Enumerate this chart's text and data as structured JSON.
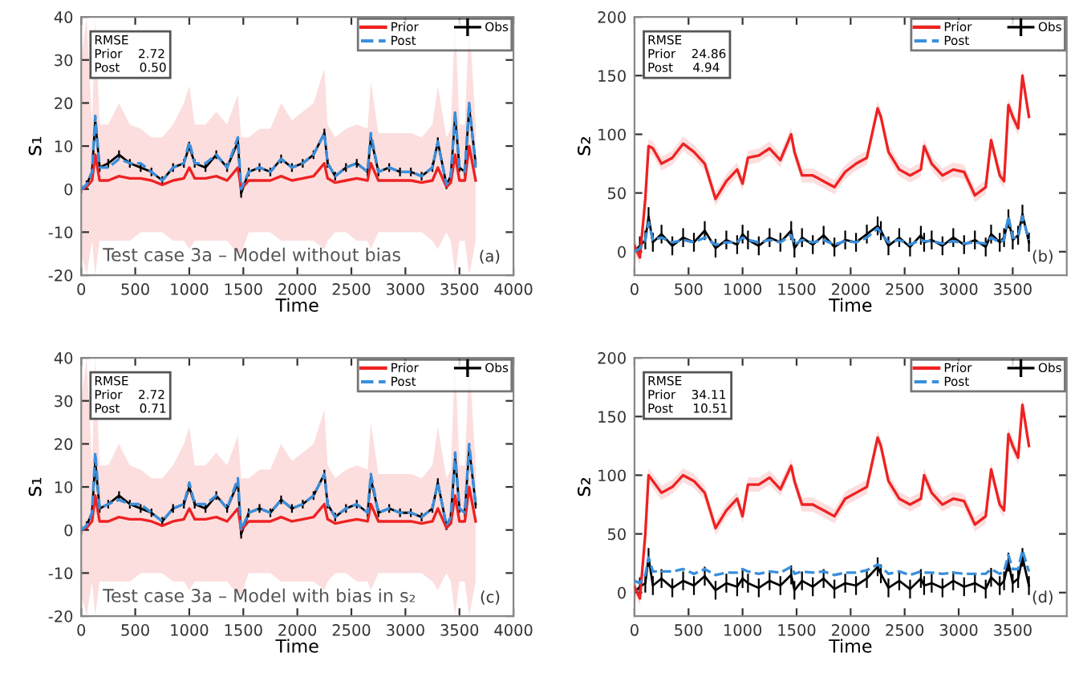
{
  "chart_data": [
    {
      "type": "line",
      "xlabel": "Time",
      "ylabel": "s₁",
      "xlim": [
        0,
        4000
      ],
      "ylim": [
        -20,
        40
      ],
      "xticks": [
        0,
        500,
        1000,
        1500,
        2000,
        2500,
        3000,
        3500,
        4000
      ],
      "yticks": [
        -20,
        -10,
        0,
        10,
        20,
        30,
        40
      ],
      "legend": "top right",
      "grid": false,
      "annotations": [
        "RMSE\nPrior    2.72\nPost     0.50",
        "Test case 3a – Model without bias",
        "(a)"
      ],
      "x": [
        0,
        50,
        100,
        130,
        170,
        250,
        350,
        450,
        550,
        650,
        750,
        850,
        950,
        1000,
        1050,
        1150,
        1250,
        1350,
        1450,
        1480,
        1550,
        1650,
        1750,
        1850,
        1950,
        2050,
        2150,
        2250,
        2280,
        2350,
        2450,
        2550,
        2650,
        2680,
        2750,
        2850,
        2950,
        3050,
        3150,
        3250,
        3300,
        3380,
        3420,
        3460,
        3500,
        3550,
        3590,
        3650
      ],
      "series": [
        {
          "name": "Prior",
          "color": "#ee2222",
          "line_style": "solid",
          "values": [
            0,
            0.5,
            2,
            8,
            2,
            2,
            3,
            2.5,
            2.5,
            2,
            1,
            2,
            2.5,
            5,
            2.5,
            2.5,
            3,
            2,
            5,
            0,
            2,
            2,
            2,
            3,
            2,
            2.5,
            3,
            6,
            2.5,
            1.5,
            2,
            2.5,
            2,
            6,
            2,
            2,
            2,
            2,
            1.5,
            2,
            5,
            0.5,
            1.5,
            8,
            2,
            2,
            10,
            2
          ],
          "lower": [
            -15,
            -20,
            -12,
            -20,
            -12,
            -12,
            -12,
            -12,
            -10,
            -10,
            -10,
            -12,
            -12,
            -14,
            -12,
            -12,
            -12,
            -12,
            -15,
            -15,
            -10,
            -10,
            -10,
            -12,
            -12,
            -12,
            -12,
            -14,
            -12,
            -10,
            -10,
            -12,
            -12,
            -14,
            -10,
            -10,
            -10,
            -10,
            -10,
            -12,
            -14,
            -10,
            -12,
            -20,
            -12,
            -12,
            -20,
            -12
          ],
          "upper": [
            30,
            40,
            15,
            40,
            15,
            15,
            20,
            15,
            14,
            12,
            12,
            15,
            20,
            24,
            15,
            15,
            18,
            15,
            22,
            12,
            12,
            14,
            14,
            20,
            16,
            18,
            20,
            28,
            15,
            12,
            14,
            15,
            14,
            25,
            13,
            13,
            13,
            13,
            12,
            15,
            24,
            12,
            14,
            40,
            15,
            15,
            40,
            15
          ]
        },
        {
          "name": "Post",
          "color": "#3a8fdc",
          "line_style": "dashed",
          "values": [
            0,
            1,
            4,
            17,
            5,
            5,
            7,
            6,
            6,
            4,
            2,
            5,
            6,
            11,
            6,
            6,
            8,
            5,
            12,
            0,
            4,
            5,
            4,
            7,
            5,
            6,
            8,
            13,
            6,
            3,
            5,
            6,
            4,
            13,
            4,
            5,
            4,
            4,
            3,
            5,
            11,
            1,
            3,
            18,
            5,
            4,
            20,
            5
          ]
        },
        {
          "name": "Obs",
          "color": "#000000",
          "line_style": "solid",
          "values": [
            0,
            1,
            4,
            16,
            5,
            6,
            8,
            6,
            5,
            4,
            2,
            5,
            6,
            10,
            6,
            5,
            8,
            5,
            11,
            -1,
            4,
            5,
            4,
            7,
            5,
            6,
            8,
            13,
            6,
            3,
            5,
            6,
            4,
            12,
            4,
            5,
            4,
            4,
            3,
            5,
            11,
            1,
            3,
            17,
            5,
            4,
            19,
            6
          ],
          "errors": [
            1,
            1,
            1,
            1,
            1,
            1,
            1,
            1,
            1,
            1,
            1,
            1,
            1,
            1,
            1,
            1,
            1,
            1,
            1,
            1,
            1,
            1,
            1,
            1,
            1,
            1,
            1,
            1,
            1,
            1,
            1,
            1,
            1,
            1,
            1,
            1,
            1,
            1,
            1,
            1,
            1,
            1,
            1,
            1,
            1,
            1,
            1,
            1
          ]
        }
      ]
    },
    {
      "type": "line",
      "xlabel": "Time",
      "ylabel": "s₂",
      "xlim": [
        0,
        4000
      ],
      "ylim": [
        -20,
        200
      ],
      "xticks": [
        0,
        500,
        1000,
        1500,
        2000,
        2500,
        3000,
        3500
      ],
      "yticks": [
        0,
        50,
        100,
        150,
        200
      ],
      "legend": "top right",
      "grid": false,
      "annotations": [
        "RMSE\nPrior    24.86\nPost     4.94",
        "(b)"
      ],
      "x": [
        0,
        50,
        100,
        130,
        170,
        250,
        350,
        450,
        550,
        650,
        750,
        850,
        950,
        1000,
        1050,
        1150,
        1250,
        1350,
        1450,
        1480,
        1550,
        1650,
        1750,
        1850,
        1950,
        2050,
        2150,
        2250,
        2280,
        2350,
        2450,
        2550,
        2650,
        2680,
        2750,
        2850,
        2950,
        3050,
        3150,
        3250,
        3300,
        3380,
        3420,
        3460,
        3500,
        3550,
        3590,
        3650
      ],
      "series": [
        {
          "name": "Prior",
          "color": "#ee2222",
          "line_style": "solid",
          "values": [
            5,
            -5,
            45,
            90,
            88,
            75,
            80,
            92,
            85,
            75,
            45,
            60,
            70,
            58,
            80,
            82,
            88,
            78,
            100,
            85,
            65,
            65,
            60,
            55,
            68,
            75,
            80,
            122,
            115,
            85,
            70,
            65,
            70,
            90,
            75,
            65,
            70,
            68,
            48,
            55,
            95,
            65,
            60,
            125,
            115,
            105,
            150,
            115
          ],
          "lower": [
            -1,
            -11,
            39,
            84,
            82,
            69,
            74,
            86,
            79,
            69,
            39,
            54,
            64,
            52,
            74,
            76,
            82,
            72,
            94,
            79,
            59,
            59,
            54,
            49,
            62,
            69,
            74,
            116,
            109,
            79,
            64,
            59,
            64,
            84,
            69,
            59,
            64,
            62,
            42,
            49,
            89,
            59,
            54,
            119,
            109,
            99,
            144,
            109
          ],
          "upper": [
            11,
            1,
            51,
            96,
            94,
            81,
            86,
            98,
            91,
            81,
            51,
            66,
            76,
            64,
            86,
            88,
            94,
            84,
            106,
            91,
            71,
            71,
            66,
            61,
            74,
            81,
            86,
            128,
            121,
            91,
            76,
            71,
            76,
            96,
            81,
            71,
            76,
            74,
            54,
            61,
            101,
            71,
            66,
            131,
            121,
            111,
            156,
            121
          ]
        },
        {
          "name": "Post",
          "color": "#3a8fdc",
          "line_style": "dashed",
          "values": [
            0,
            3,
            10,
            25,
            10,
            12,
            8,
            10,
            8,
            12,
            6,
            8,
            8,
            12,
            10,
            8,
            10,
            8,
            14,
            6,
            10,
            8,
            10,
            6,
            9,
            8,
            12,
            20,
            16,
            8,
            10,
            6,
            10,
            9,
            9,
            7,
            9,
            7,
            8,
            7,
            12,
            8,
            10,
            30,
            12,
            12,
            30,
            10
          ]
        },
        {
          "name": "Obs",
          "color": "#000000",
          "line_style": "solid",
          "values": [
            0,
            5,
            10,
            30,
            8,
            15,
            5,
            12,
            8,
            18,
            3,
            10,
            6,
            15,
            10,
            5,
            12,
            8,
            18,
            3,
            12,
            6,
            14,
            4,
            10,
            8,
            15,
            22,
            18,
            5,
            12,
            4,
            14,
            8,
            10,
            5,
            12,
            6,
            10,
            4,
            15,
            8,
            12,
            28,
            10,
            14,
            32,
            8
          ],
          "errors": [
            8,
            8,
            8,
            8,
            8,
            8,
            8,
            8,
            8,
            8,
            8,
            8,
            8,
            8,
            8,
            8,
            8,
            8,
            8,
            8,
            8,
            8,
            8,
            8,
            8,
            8,
            8,
            8,
            8,
            8,
            8,
            8,
            8,
            8,
            8,
            8,
            8,
            8,
            8,
            8,
            8,
            8,
            8,
            8,
            8,
            8,
            8,
            8
          ]
        }
      ]
    },
    {
      "type": "line",
      "xlabel": "Time",
      "ylabel": "s₁",
      "xlim": [
        0,
        4000
      ],
      "ylim": [
        -20,
        40
      ],
      "xticks": [
        0,
        500,
        1000,
        1500,
        2000,
        2500,
        3000,
        3500,
        4000
      ],
      "yticks": [
        -20,
        -10,
        0,
        10,
        20,
        30,
        40
      ],
      "legend": "top right",
      "grid": false,
      "annotations": [
        "RMSE\nPrior    2.72\nPost     0.71",
        "Test case 3a – Model with bias in s₂",
        "(c)"
      ],
      "x": [
        0,
        50,
        100,
        130,
        170,
        250,
        350,
        450,
        550,
        650,
        750,
        850,
        950,
        1000,
        1050,
        1150,
        1250,
        1350,
        1450,
        1480,
        1550,
        1650,
        1750,
        1850,
        1950,
        2050,
        2150,
        2250,
        2280,
        2350,
        2450,
        2550,
        2650,
        2680,
        2750,
        2850,
        2950,
        3050,
        3150,
        3250,
        3300,
        3380,
        3420,
        3460,
        3500,
        3550,
        3590,
        3650
      ],
      "series": [
        {
          "name": "Prior",
          "color": "#ee2222",
          "line_style": "solid",
          "values": [
            0,
            0.5,
            2,
            8,
            2,
            2,
            3,
            2.5,
            2.5,
            2,
            1,
            2,
            2.5,
            5,
            2.5,
            2.5,
            3,
            2,
            5,
            0,
            2,
            2,
            2,
            3,
            2,
            2.5,
            3,
            6,
            2.5,
            1.5,
            2,
            2.5,
            2,
            6,
            2,
            2,
            2,
            2,
            1.5,
            2,
            5,
            0.5,
            1.5,
            8,
            2,
            2,
            10,
            2
          ],
          "lower": [
            -15,
            -20,
            -12,
            -20,
            -12,
            -12,
            -12,
            -12,
            -10,
            -10,
            -10,
            -12,
            -12,
            -14,
            -12,
            -12,
            -12,
            -12,
            -15,
            -15,
            -10,
            -10,
            -10,
            -12,
            -12,
            -12,
            -12,
            -14,
            -12,
            -10,
            -10,
            -12,
            -12,
            -14,
            -10,
            -10,
            -10,
            -10,
            -10,
            -12,
            -14,
            -10,
            -12,
            -20,
            -12,
            -12,
            -20,
            -12
          ],
          "upper": [
            30,
            40,
            15,
            40,
            15,
            15,
            20,
            15,
            14,
            12,
            12,
            15,
            20,
            24,
            15,
            15,
            18,
            15,
            22,
            12,
            12,
            14,
            14,
            20,
            16,
            18,
            20,
            28,
            15,
            12,
            14,
            15,
            14,
            25,
            13,
            13,
            13,
            13,
            12,
            15,
            24,
            12,
            14,
            40,
            15,
            15,
            40,
            15
          ]
        },
        {
          "name": "Post",
          "color": "#3a8fdc",
          "line_style": "dashed",
          "values": [
            0,
            1,
            4,
            18,
            5,
            6,
            7,
            6,
            6,
            4,
            2,
            5,
            6,
            11,
            6,
            6,
            8,
            5,
            12,
            0,
            4,
            5,
            4,
            7,
            5,
            6,
            8,
            13,
            6,
            3,
            5,
            6,
            4,
            13,
            4,
            5,
            4,
            4,
            3,
            5,
            11,
            1,
            3,
            18,
            5,
            4,
            20,
            6
          ]
        },
        {
          "name": "Obs",
          "color": "#000000",
          "line_style": "solid",
          "values": [
            0,
            1,
            4,
            16,
            5,
            6,
            8,
            6,
            5,
            4,
            2,
            5,
            6,
            10,
            6,
            5,
            8,
            5,
            11,
            -1,
            4,
            5,
            4,
            7,
            5,
            6,
            8,
            13,
            6,
            3,
            5,
            6,
            4,
            12,
            4,
            5,
            4,
            4,
            3,
            5,
            11,
            1,
            3,
            17,
            5,
            4,
            19,
            6
          ],
          "errors": [
            1,
            1,
            1,
            1,
            1,
            1,
            1,
            1,
            1,
            1,
            1,
            1,
            1,
            1,
            1,
            1,
            1,
            1,
            1,
            1,
            1,
            1,
            1,
            1,
            1,
            1,
            1,
            1,
            1,
            1,
            1,
            1,
            1,
            1,
            1,
            1,
            1,
            1,
            1,
            1,
            1,
            1,
            1,
            1,
            1,
            1,
            1,
            1
          ]
        }
      ]
    },
    {
      "type": "line",
      "xlabel": "Time",
      "ylabel": "s₂",
      "xlim": [
        0,
        4000
      ],
      "ylim": [
        -20,
        200
      ],
      "xticks": [
        0,
        500,
        1000,
        1500,
        2000,
        2500,
        3000,
        3500
      ],
      "yticks": [
        0,
        50,
        100,
        150,
        200
      ],
      "legend": "top right",
      "grid": false,
      "annotations": [
        "RMSE\nPrior    34.11\nPost     10.51",
        "(d)"
      ],
      "x": [
        0,
        50,
        100,
        130,
        170,
        250,
        350,
        450,
        550,
        650,
        750,
        850,
        950,
        1000,
        1050,
        1150,
        1250,
        1350,
        1450,
        1480,
        1550,
        1650,
        1750,
        1850,
        1950,
        2050,
        2150,
        2250,
        2280,
        2350,
        2450,
        2550,
        2650,
        2680,
        2750,
        2850,
        2950,
        3050,
        3150,
        3250,
        3300,
        3380,
        3420,
        3460,
        3500,
        3550,
        3590,
        3650
      ],
      "series": [
        {
          "name": "Prior",
          "color": "#ee2222",
          "line_style": "solid",
          "values": [
            5,
            -5,
            50,
            100,
            95,
            85,
            90,
            100,
            95,
            85,
            55,
            70,
            80,
            65,
            92,
            92,
            98,
            88,
            108,
            95,
            75,
            75,
            70,
            65,
            80,
            85,
            90,
            132,
            125,
            95,
            80,
            75,
            80,
            100,
            85,
            75,
            80,
            78,
            58,
            65,
            105,
            75,
            70,
            135,
            125,
            115,
            160,
            125
          ],
          "lower": [
            -1,
            -11,
            44,
            94,
            89,
            79,
            84,
            94,
            89,
            79,
            49,
            64,
            74,
            59,
            86,
            86,
            92,
            82,
            102,
            89,
            69,
            69,
            64,
            59,
            74,
            79,
            84,
            126,
            119,
            89,
            74,
            69,
            74,
            94,
            79,
            69,
            74,
            72,
            52,
            59,
            99,
            69,
            64,
            129,
            119,
            109,
            154,
            119
          ],
          "upper": [
            11,
            1,
            56,
            106,
            101,
            91,
            96,
            106,
            101,
            91,
            61,
            76,
            86,
            71,
            98,
            98,
            104,
            94,
            114,
            101,
            81,
            81,
            76,
            71,
            86,
            91,
            96,
            138,
            131,
            101,
            86,
            81,
            86,
            106,
            91,
            81,
            86,
            84,
            64,
            71,
            111,
            81,
            76,
            141,
            131,
            121,
            166,
            131
          ]
        },
        {
          "name": "Post",
          "color": "#3a8fdc",
          "line_style": "dashed",
          "values": [
            10,
            8,
            15,
            30,
            18,
            18,
            18,
            20,
            16,
            20,
            15,
            17,
            17,
            20,
            18,
            16,
            18,
            17,
            22,
            16,
            18,
            17,
            18,
            15,
            17,
            17,
            19,
            24,
            22,
            16,
            18,
            15,
            18,
            17,
            17,
            16,
            17,
            16,
            16,
            16,
            20,
            16,
            18,
            32,
            20,
            20,
            36,
            18
          ]
        },
        {
          "name": "Obs",
          "color": "#000000",
          "line_style": "solid",
          "values": [
            0,
            5,
            8,
            30,
            6,
            12,
            4,
            10,
            6,
            14,
            2,
            8,
            5,
            12,
            8,
            4,
            10,
            6,
            15,
            2,
            10,
            5,
            12,
            3,
            8,
            6,
            12,
            22,
            16,
            4,
            10,
            3,
            12,
            6,
            8,
            4,
            10,
            5,
            8,
            3,
            13,
            6,
            10,
            26,
            8,
            12,
            30,
            6
          ],
          "errors": [
            8,
            8,
            8,
            8,
            8,
            8,
            8,
            8,
            8,
            8,
            8,
            8,
            8,
            8,
            8,
            8,
            8,
            8,
            8,
            8,
            8,
            8,
            8,
            8,
            8,
            8,
            8,
            8,
            8,
            8,
            8,
            8,
            8,
            8,
            8,
            8,
            8,
            8,
            8,
            8,
            8,
            8,
            8,
            8,
            8,
            8,
            8,
            8
          ]
        }
      ]
    }
  ]
}
